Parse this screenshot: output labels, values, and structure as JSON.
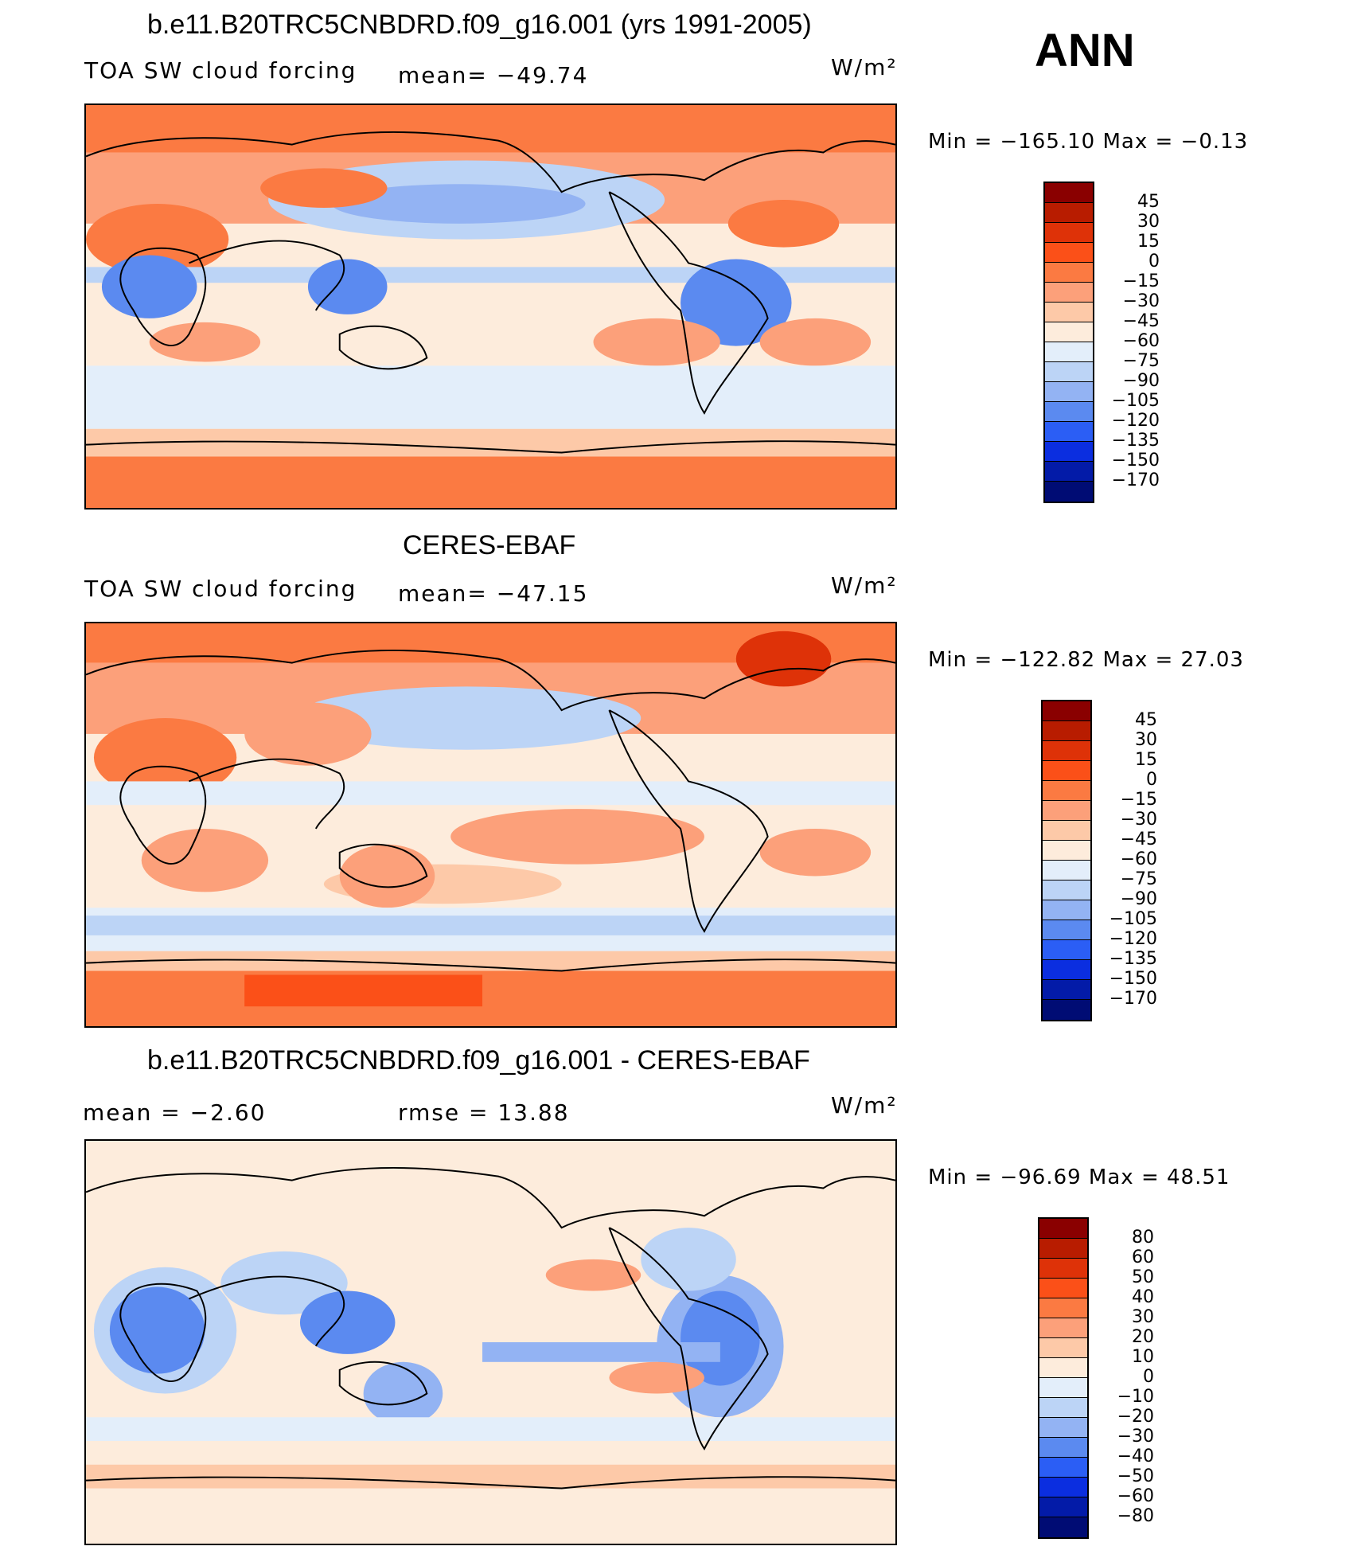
{
  "season": "ANN",
  "chart_data": [
    {
      "type": "heatmap",
      "title": "b.e11.B20TRC5CNBDRD.f09_g16.001 (yrs 1991-2005)",
      "variable": "TOA SW cloud forcing",
      "stat_text": "mean=  −49.74",
      "mean": -49.74,
      "units": "W/m²",
      "min_max_text": "Min  =  −165.10  Max  =   −0.13",
      "min": -165.1,
      "max": -0.13,
      "levels": [
        "45",
        "30",
        "15",
        "0",
        "−15",
        "−30",
        "−45",
        "−60",
        "−75",
        "−90",
        "−105",
        "−120",
        "−135",
        "−150",
        "−170"
      ],
      "colors": [
        "#8a0000",
        "#b81c00",
        "#de3208",
        "#fb5018",
        "#fb7a42",
        "#fca07a",
        "#fdc9a8",
        "#fdecdc",
        "#e3eefa",
        "#bcd4f6",
        "#93b3f3",
        "#5b8af0",
        "#2b5ef5",
        "#0b2ee0",
        "#031ba8",
        "#000c74"
      ]
    },
    {
      "type": "heatmap",
      "title": "CERES-EBAF",
      "variable": "TOA SW cloud forcing",
      "stat_text": "mean=  −47.15",
      "mean": -47.15,
      "units": "W/m²",
      "min_max_text": "Min  =  −122.82  Max  =    27.03",
      "min": -122.82,
      "max": 27.03,
      "levels": [
        "45",
        "30",
        "15",
        "0",
        "−15",
        "−30",
        "−45",
        "−60",
        "−75",
        "−90",
        "−105",
        "−120",
        "−135",
        "−150",
        "−170"
      ],
      "colors": [
        "#8a0000",
        "#b81c00",
        "#de3208",
        "#fb5018",
        "#fb7a42",
        "#fca07a",
        "#fdc9a8",
        "#fdecdc",
        "#e3eefa",
        "#bcd4f6",
        "#93b3f3",
        "#5b8af0",
        "#2b5ef5",
        "#0b2ee0",
        "#031ba8",
        "#000c74"
      ]
    },
    {
      "type": "heatmap",
      "title": "b.e11.B20TRC5CNBDRD.f09_g16.001 - CERES-EBAF",
      "mean_text": "mean  =    −2.60",
      "mean": -2.6,
      "rmse_text": "rmse  =    13.88",
      "rmse": 13.88,
      "units": "W/m²",
      "min_max_text": "Min  =  −96.69  Max  =   48.51",
      "min": -96.69,
      "max": 48.51,
      "levels": [
        "80",
        "60",
        "50",
        "40",
        "30",
        "20",
        "10",
        "0",
        "−10",
        "−20",
        "−30",
        "−40",
        "−50",
        "−60",
        "−80"
      ],
      "colors": [
        "#8a0000",
        "#b81c00",
        "#de3208",
        "#fb5018",
        "#fb7a42",
        "#fca07a",
        "#fdc9a8",
        "#fdecdc",
        "#e3eefa",
        "#bcd4f6",
        "#93b3f3",
        "#5b8af0",
        "#2b5ef5",
        "#0b2ee0",
        "#031ba8",
        "#000c74"
      ]
    }
  ]
}
